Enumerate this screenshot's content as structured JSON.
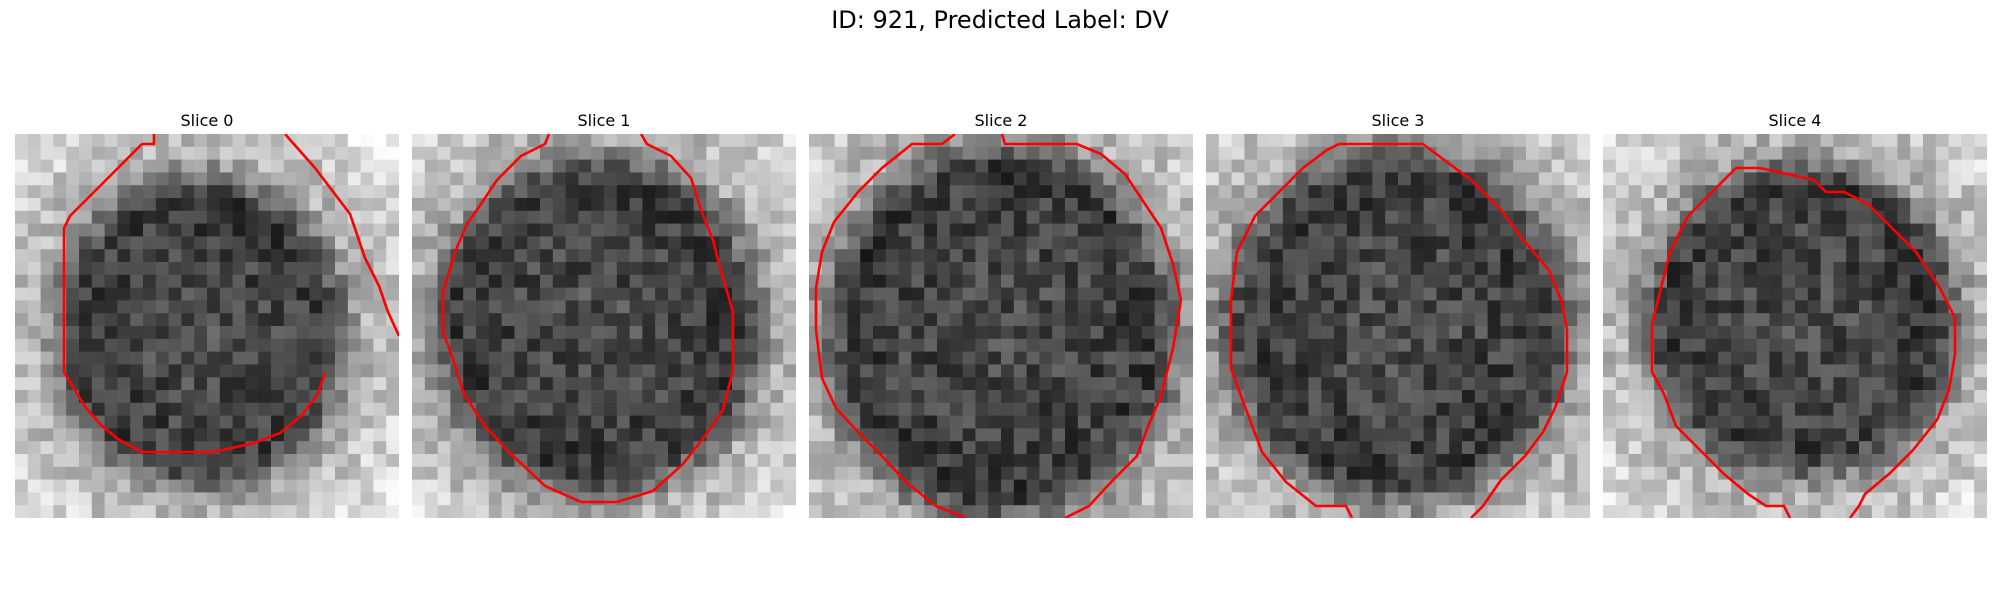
{
  "figure": {
    "title": "ID: 921, Predicted Label: DV"
  },
  "slices": [
    {
      "title": "Slice 0"
    },
    {
      "title": "Slice 1"
    },
    {
      "title": "Slice 2"
    },
    {
      "title": "Slice 3"
    },
    {
      "title": "Slice 4"
    }
  ],
  "style": {
    "contour_color": "#ff0000",
    "colormap": "gray"
  }
}
